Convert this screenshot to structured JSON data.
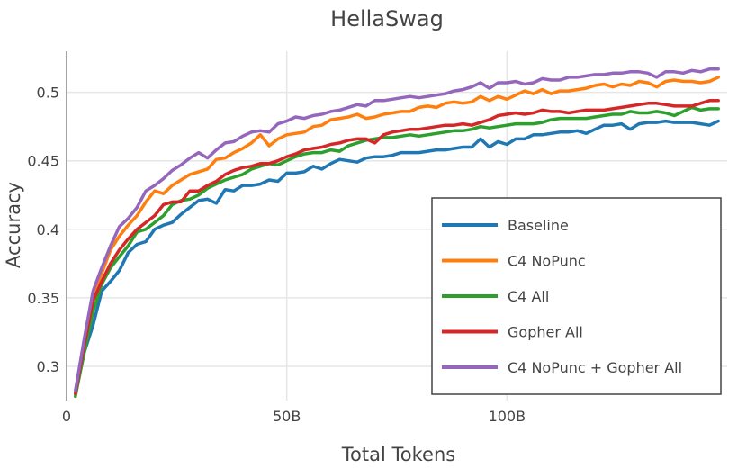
{
  "chart_data": {
    "type": "line",
    "title": "HellaSwag",
    "xlabel": "Total Tokens",
    "ylabel": "Accuracy",
    "xlim": [
      0,
      150
    ],
    "ylim": [
      0.275,
      0.53
    ],
    "x_ticks": [
      0,
      50,
      100
    ],
    "x_tick_labels": [
      "0",
      "50B",
      "100B"
    ],
    "y_ticks": [
      0.3,
      0.35,
      0.4,
      0.45,
      0.5
    ],
    "y_tick_labels": [
      "0.3",
      "0.35",
      "0.4",
      "0.45",
      "0.5"
    ],
    "grid": true,
    "legend_position": "bottom-right",
    "x": [
      2,
      4,
      6,
      8,
      10,
      12,
      14,
      16,
      18,
      20,
      22,
      24,
      26,
      28,
      30,
      32,
      34,
      36,
      38,
      40,
      42,
      44,
      46,
      48,
      50,
      52,
      54,
      56,
      58,
      60,
      62,
      64,
      66,
      68,
      70,
      72,
      74,
      76,
      78,
      80,
      82,
      84,
      86,
      88,
      90,
      92,
      94,
      96,
      98,
      100,
      102,
      104,
      106,
      108,
      110,
      112,
      114,
      116,
      118,
      120,
      122,
      124,
      126,
      128,
      130,
      132,
      134,
      136,
      138,
      140,
      142,
      144,
      146,
      148
    ],
    "series": [
      {
        "name": "Baseline",
        "color": "#1f77b4",
        "values": [
          0.28,
          0.31,
          0.33,
          0.355,
          0.362,
          0.37,
          0.383,
          0.389,
          0.391,
          0.4,
          0.403,
          0.405,
          0.411,
          0.416,
          0.421,
          0.422,
          0.419,
          0.429,
          0.428,
          0.432,
          0.432,
          0.433,
          0.436,
          0.435,
          0.441,
          0.441,
          0.442,
          0.446,
          0.444,
          0.448,
          0.451,
          0.45,
          0.449,
          0.452,
          0.453,
          0.453,
          0.454,
          0.456,
          0.456,
          0.456,
          0.457,
          0.458,
          0.458,
          0.459,
          0.46,
          0.46,
          0.466,
          0.46,
          0.464,
          0.462,
          0.466,
          0.466,
          0.469,
          0.469,
          0.47,
          0.471,
          0.471,
          0.472,
          0.47,
          0.473,
          0.476,
          0.476,
          0.477,
          0.473,
          0.477,
          0.478,
          0.478,
          0.479,
          0.478,
          0.478,
          0.478,
          0.477,
          0.476,
          0.479
        ]
      },
      {
        "name": "C4 NoPunc",
        "color": "#ff7f0e",
        "values": [
          0.282,
          0.315,
          0.35,
          0.368,
          0.385,
          0.395,
          0.403,
          0.41,
          0.42,
          0.428,
          0.426,
          0.432,
          0.436,
          0.44,
          0.442,
          0.444,
          0.451,
          0.452,
          0.456,
          0.459,
          0.463,
          0.469,
          0.461,
          0.466,
          0.469,
          0.47,
          0.471,
          0.475,
          0.476,
          0.48,
          0.481,
          0.482,
          0.484,
          0.481,
          0.482,
          0.484,
          0.485,
          0.486,
          0.486,
          0.489,
          0.49,
          0.489,
          0.492,
          0.493,
          0.492,
          0.493,
          0.497,
          0.494,
          0.497,
          0.495,
          0.498,
          0.501,
          0.499,
          0.502,
          0.499,
          0.501,
          0.501,
          0.502,
          0.503,
          0.505,
          0.506,
          0.504,
          0.506,
          0.505,
          0.508,
          0.507,
          0.504,
          0.508,
          0.509,
          0.508,
          0.508,
          0.507,
          0.508,
          0.511
        ]
      },
      {
        "name": "C4 All",
        "color": "#2ca02c",
        "values": [
          0.278,
          0.31,
          0.34,
          0.36,
          0.372,
          0.38,
          0.388,
          0.398,
          0.4,
          0.405,
          0.41,
          0.418,
          0.421,
          0.422,
          0.425,
          0.43,
          0.433,
          0.436,
          0.438,
          0.44,
          0.444,
          0.446,
          0.448,
          0.447,
          0.45,
          0.453,
          0.455,
          0.456,
          0.456,
          0.458,
          0.457,
          0.461,
          0.463,
          0.465,
          0.466,
          0.467,
          0.467,
          0.468,
          0.469,
          0.468,
          0.469,
          0.47,
          0.471,
          0.472,
          0.472,
          0.473,
          0.475,
          0.474,
          0.475,
          0.476,
          0.477,
          0.477,
          0.477,
          0.478,
          0.48,
          0.481,
          0.481,
          0.481,
          0.481,
          0.482,
          0.483,
          0.484,
          0.484,
          0.486,
          0.485,
          0.485,
          0.486,
          0.485,
          0.483,
          0.486,
          0.489,
          0.487,
          0.488,
          0.488
        ]
      },
      {
        "name": "Gopher All",
        "color": "#d62728",
        "values": [
          0.28,
          0.315,
          0.348,
          0.362,
          0.375,
          0.385,
          0.393,
          0.4,
          0.405,
          0.41,
          0.418,
          0.42,
          0.42,
          0.428,
          0.428,
          0.432,
          0.435,
          0.44,
          0.443,
          0.445,
          0.446,
          0.448,
          0.448,
          0.45,
          0.453,
          0.455,
          0.458,
          0.459,
          0.46,
          0.462,
          0.463,
          0.465,
          0.466,
          0.466,
          0.463,
          0.469,
          0.471,
          0.472,
          0.473,
          0.473,
          0.474,
          0.475,
          0.476,
          0.476,
          0.477,
          0.476,
          0.478,
          0.48,
          0.483,
          0.484,
          0.485,
          0.484,
          0.485,
          0.487,
          0.486,
          0.486,
          0.485,
          0.486,
          0.487,
          0.487,
          0.487,
          0.488,
          0.489,
          0.49,
          0.491,
          0.492,
          0.492,
          0.491,
          0.49,
          0.49,
          0.49,
          0.492,
          0.494,
          0.494
        ]
      },
      {
        "name": "C4 NoPunc + Gopher All",
        "color": "#9467bd",
        "values": [
          0.282,
          0.32,
          0.355,
          0.372,
          0.388,
          0.402,
          0.408,
          0.416,
          0.428,
          0.432,
          0.437,
          0.443,
          0.447,
          0.452,
          0.456,
          0.452,
          0.458,
          0.463,
          0.464,
          0.468,
          0.471,
          0.472,
          0.471,
          0.477,
          0.479,
          0.482,
          0.481,
          0.483,
          0.484,
          0.486,
          0.487,
          0.489,
          0.491,
          0.49,
          0.494,
          0.494,
          0.495,
          0.496,
          0.497,
          0.496,
          0.497,
          0.498,
          0.499,
          0.501,
          0.502,
          0.504,
          0.507,
          0.503,
          0.507,
          0.507,
          0.508,
          0.506,
          0.507,
          0.51,
          0.509,
          0.509,
          0.511,
          0.511,
          0.512,
          0.513,
          0.513,
          0.514,
          0.514,
          0.515,
          0.515,
          0.514,
          0.511,
          0.515,
          0.515,
          0.514,
          0.516,
          0.515,
          0.517,
          0.517
        ]
      }
    ]
  }
}
